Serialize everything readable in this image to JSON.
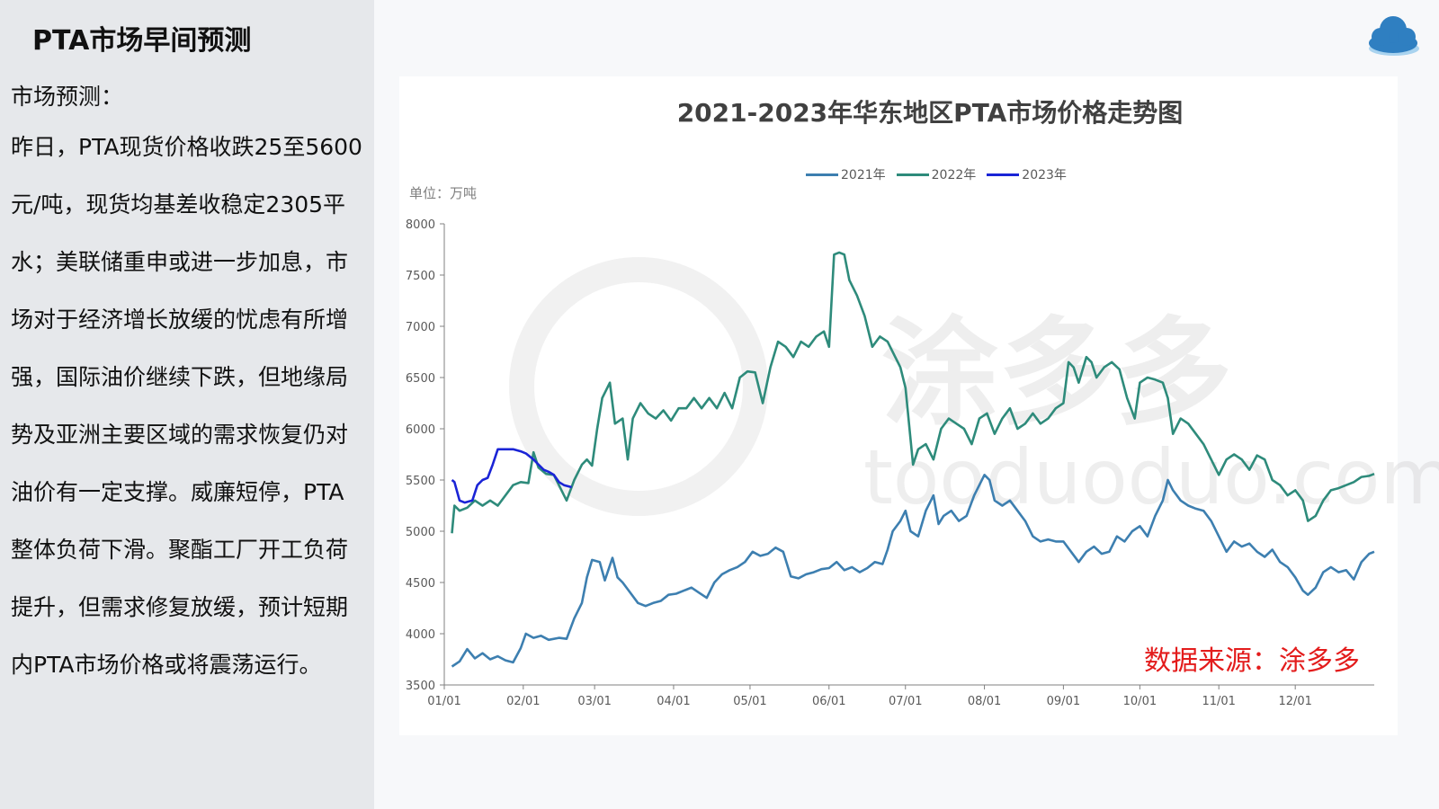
{
  "sidebar": {
    "title": "PTA市场早间预测",
    "subhead": "市场预测：",
    "paragraph": "昨日，PTA现货价格收跌25至5600元/吨，现货均基差收稳定2305平水；美联储重申或进一步加息，市场对于经济增长放缓的忧虑有所增强，国际油价继续下跌，但地缘局势及亚洲主要区域的需求恢复仍对油价有一定支撑。威廉短停，PTA整体负荷下滑。聚酯工厂开工负荷提升，但需求修复放缓，预计短期内PTA市场价格或将震荡运行。"
  },
  "logo": {
    "icon": "cloud-logo-icon",
    "color": "#2f7fc1"
  },
  "watermark": {
    "brand": "涂多多",
    "url": "tooduoduo.com"
  },
  "chart_data": {
    "type": "line",
    "title": "2021-2023年华东地区PTA市场价格走势图",
    "unit_label": "单位：万吨",
    "source": "数据来源：涂多多",
    "ylim": [
      3500,
      8000
    ],
    "yticks": [
      "8000",
      "7500",
      "7000",
      "6500",
      "6000",
      "5500",
      "5000",
      "4500",
      "4000",
      "3500"
    ],
    "xlim": [
      0,
      365
    ],
    "xticks": [
      {
        "label": "01/01",
        "day": 0
      },
      {
        "label": "02/01",
        "day": 31
      },
      {
        "label": "03/01",
        "day": 59
      },
      {
        "label": "04/01",
        "day": 90
      },
      {
        "label": "05/01",
        "day": 120
      },
      {
        "label": "06/01",
        "day": 151
      },
      {
        "label": "07/01",
        "day": 181
      },
      {
        "label": "08/01",
        "day": 212
      },
      {
        "label": "09/01",
        "day": 243
      },
      {
        "label": "10/01",
        "day": 273
      },
      {
        "label": "11/01",
        "day": 304
      },
      {
        "label": "12/01",
        "day": 334
      }
    ],
    "series": [
      {
        "name": "2021年",
        "color": "#3d7fb0",
        "points": [
          [
            3,
            3680
          ],
          [
            6,
            3730
          ],
          [
            9,
            3850
          ],
          [
            12,
            3760
          ],
          [
            15,
            3810
          ],
          [
            18,
            3750
          ],
          [
            21,
            3780
          ],
          [
            24,
            3740
          ],
          [
            27,
            3720
          ],
          [
            30,
            3860
          ],
          [
            32,
            4000
          ],
          [
            35,
            3960
          ],
          [
            38,
            3980
          ],
          [
            41,
            3940
          ],
          [
            45,
            3960
          ],
          [
            48,
            3950
          ],
          [
            51,
            4150
          ],
          [
            54,
            4300
          ],
          [
            56,
            4550
          ],
          [
            58,
            4720
          ],
          [
            61,
            4700
          ],
          [
            63,
            4520
          ],
          [
            66,
            4740
          ],
          [
            68,
            4550
          ],
          [
            70,
            4500
          ],
          [
            73,
            4400
          ],
          [
            76,
            4300
          ],
          [
            79,
            4270
          ],
          [
            82,
            4300
          ],
          [
            85,
            4320
          ],
          [
            88,
            4380
          ],
          [
            91,
            4390
          ],
          [
            94,
            4420
          ],
          [
            97,
            4450
          ],
          [
            100,
            4400
          ],
          [
            103,
            4350
          ],
          [
            106,
            4500
          ],
          [
            109,
            4580
          ],
          [
            112,
            4620
          ],
          [
            115,
            4650
          ],
          [
            118,
            4700
          ],
          [
            121,
            4800
          ],
          [
            124,
            4760
          ],
          [
            127,
            4780
          ],
          [
            130,
            4840
          ],
          [
            133,
            4800
          ],
          [
            136,
            4560
          ],
          [
            139,
            4540
          ],
          [
            142,
            4580
          ],
          [
            145,
            4600
          ],
          [
            148,
            4630
          ],
          [
            151,
            4640
          ],
          [
            154,
            4700
          ],
          [
            157,
            4620
          ],
          [
            160,
            4650
          ],
          [
            163,
            4600
          ],
          [
            166,
            4640
          ],
          [
            169,
            4700
          ],
          [
            172,
            4680
          ],
          [
            174,
            4820
          ],
          [
            176,
            5000
          ],
          [
            179,
            5100
          ],
          [
            181,
            5200
          ],
          [
            183,
            5000
          ],
          [
            186,
            4950
          ],
          [
            189,
            5200
          ],
          [
            192,
            5350
          ],
          [
            194,
            5070
          ],
          [
            196,
            5150
          ],
          [
            199,
            5200
          ],
          [
            202,
            5100
          ],
          [
            205,
            5150
          ],
          [
            208,
            5350
          ],
          [
            210,
            5450
          ],
          [
            212,
            5550
          ],
          [
            214,
            5500
          ],
          [
            216,
            5300
          ],
          [
            219,
            5250
          ],
          [
            222,
            5300
          ],
          [
            225,
            5200
          ],
          [
            228,
            5100
          ],
          [
            231,
            4950
          ],
          [
            234,
            4900
          ],
          [
            237,
            4920
          ],
          [
            240,
            4900
          ],
          [
            243,
            4900
          ],
          [
            246,
            4800
          ],
          [
            249,
            4700
          ],
          [
            252,
            4800
          ],
          [
            255,
            4850
          ],
          [
            258,
            4780
          ],
          [
            261,
            4800
          ],
          [
            264,
            4950
          ],
          [
            267,
            4900
          ],
          [
            270,
            5000
          ],
          [
            273,
            5050
          ],
          [
            276,
            4950
          ],
          [
            279,
            5150
          ],
          [
            282,
            5300
          ],
          [
            284,
            5500
          ],
          [
            286,
            5400
          ],
          [
            289,
            5300
          ],
          [
            292,
            5250
          ],
          [
            295,
            5220
          ],
          [
            298,
            5200
          ],
          [
            301,
            5100
          ],
          [
            304,
            4950
          ],
          [
            307,
            4800
          ],
          [
            310,
            4900
          ],
          [
            313,
            4850
          ],
          [
            316,
            4880
          ],
          [
            319,
            4800
          ],
          [
            322,
            4750
          ],
          [
            325,
            4820
          ],
          [
            328,
            4700
          ],
          [
            331,
            4650
          ],
          [
            334,
            4550
          ],
          [
            337,
            4420
          ],
          [
            339,
            4380
          ],
          [
            342,
            4450
          ],
          [
            345,
            4600
          ],
          [
            348,
            4650
          ],
          [
            351,
            4600
          ],
          [
            354,
            4620
          ],
          [
            357,
            4530
          ],
          [
            360,
            4700
          ],
          [
            363,
            4780
          ],
          [
            365,
            4800
          ]
        ]
      },
      {
        "name": "2022年",
        "color": "#2e8b7b",
        "points": [
          [
            3,
            4980
          ],
          [
            4,
            5250
          ],
          [
            6,
            5200
          ],
          [
            9,
            5230
          ],
          [
            12,
            5300
          ],
          [
            15,
            5250
          ],
          [
            18,
            5300
          ],
          [
            21,
            5250
          ],
          [
            24,
            5350
          ],
          [
            27,
            5450
          ],
          [
            30,
            5480
          ],
          [
            33,
            5470
          ],
          [
            35,
            5770
          ],
          [
            37,
            5620
          ],
          [
            40,
            5560
          ],
          [
            43,
            5550
          ],
          [
            46,
            5400
          ],
          [
            48,
            5300
          ],
          [
            51,
            5500
          ],
          [
            54,
            5650
          ],
          [
            56,
            5700
          ],
          [
            58,
            5640
          ],
          [
            60,
            6000
          ],
          [
            62,
            6300
          ],
          [
            65,
            6450
          ],
          [
            67,
            6050
          ],
          [
            70,
            6100
          ],
          [
            72,
            5700
          ],
          [
            74,
            6100
          ],
          [
            77,
            6250
          ],
          [
            80,
            6150
          ],
          [
            83,
            6100
          ],
          [
            86,
            6180
          ],
          [
            89,
            6080
          ],
          [
            92,
            6200
          ],
          [
            95,
            6200
          ],
          [
            98,
            6300
          ],
          [
            101,
            6200
          ],
          [
            104,
            6300
          ],
          [
            107,
            6200
          ],
          [
            110,
            6350
          ],
          [
            113,
            6200
          ],
          [
            116,
            6500
          ],
          [
            119,
            6560
          ],
          [
            122,
            6550
          ],
          [
            125,
            6250
          ],
          [
            128,
            6600
          ],
          [
            131,
            6850
          ],
          [
            134,
            6800
          ],
          [
            137,
            6700
          ],
          [
            140,
            6850
          ],
          [
            143,
            6800
          ],
          [
            146,
            6900
          ],
          [
            149,
            6950
          ],
          [
            151,
            6800
          ],
          [
            153,
            7700
          ],
          [
            155,
            7720
          ],
          [
            157,
            7700
          ],
          [
            159,
            7450
          ],
          [
            162,
            7300
          ],
          [
            165,
            7100
          ],
          [
            168,
            6800
          ],
          [
            171,
            6900
          ],
          [
            174,
            6850
          ],
          [
            177,
            6700
          ],
          [
            179,
            6600
          ],
          [
            181,
            6400
          ],
          [
            183,
            5900
          ],
          [
            184,
            5650
          ],
          [
            186,
            5800
          ],
          [
            189,
            5850
          ],
          [
            192,
            5700
          ],
          [
            195,
            6000
          ],
          [
            198,
            6100
          ],
          [
            201,
            6050
          ],
          [
            204,
            6000
          ],
          [
            207,
            5850
          ],
          [
            210,
            6100
          ],
          [
            213,
            6150
          ],
          [
            216,
            5950
          ],
          [
            219,
            6100
          ],
          [
            222,
            6200
          ],
          [
            225,
            6000
          ],
          [
            228,
            6050
          ],
          [
            231,
            6150
          ],
          [
            234,
            6050
          ],
          [
            237,
            6100
          ],
          [
            240,
            6200
          ],
          [
            243,
            6250
          ],
          [
            245,
            6650
          ],
          [
            247,
            6600
          ],
          [
            249,
            6450
          ],
          [
            252,
            6700
          ],
          [
            254,
            6650
          ],
          [
            256,
            6500
          ],
          [
            259,
            6600
          ],
          [
            262,
            6650
          ],
          [
            265,
            6580
          ],
          [
            268,
            6300
          ],
          [
            271,
            6100
          ],
          [
            273,
            6450
          ],
          [
            276,
            6500
          ],
          [
            279,
            6480
          ],
          [
            282,
            6450
          ],
          [
            284,
            6300
          ],
          [
            286,
            5950
          ],
          [
            289,
            6100
          ],
          [
            292,
            6050
          ],
          [
            295,
            5950
          ],
          [
            298,
            5850
          ],
          [
            301,
            5700
          ],
          [
            304,
            5550
          ],
          [
            307,
            5700
          ],
          [
            310,
            5750
          ],
          [
            313,
            5700
          ],
          [
            316,
            5600
          ],
          [
            319,
            5740
          ],
          [
            322,
            5700
          ],
          [
            325,
            5500
          ],
          [
            328,
            5450
          ],
          [
            331,
            5350
          ],
          [
            334,
            5400
          ],
          [
            337,
            5300
          ],
          [
            339,
            5100
          ],
          [
            342,
            5150
          ],
          [
            345,
            5300
          ],
          [
            348,
            5400
          ],
          [
            351,
            5420
          ],
          [
            354,
            5450
          ],
          [
            357,
            5480
          ],
          [
            360,
            5530
          ],
          [
            363,
            5540
          ],
          [
            365,
            5560
          ]
        ]
      },
      {
        "name": "2023年",
        "color": "#1a24d6",
        "points": [
          [
            3,
            5500
          ],
          [
            4,
            5480
          ],
          [
            6,
            5300
          ],
          [
            8,
            5280
          ],
          [
            11,
            5300
          ],
          [
            13,
            5450
          ],
          [
            15,
            5500
          ],
          [
            17,
            5520
          ],
          [
            19,
            5650
          ],
          [
            21,
            5800
          ],
          [
            24,
            5800
          ],
          [
            27,
            5800
          ],
          [
            30,
            5780
          ],
          [
            32,
            5760
          ],
          [
            35,
            5700
          ],
          [
            37,
            5650
          ],
          [
            39,
            5600
          ],
          [
            41,
            5580
          ],
          [
            43,
            5550
          ],
          [
            45,
            5480
          ],
          [
            47,
            5450
          ],
          [
            50,
            5430
          ]
        ]
      }
    ]
  }
}
